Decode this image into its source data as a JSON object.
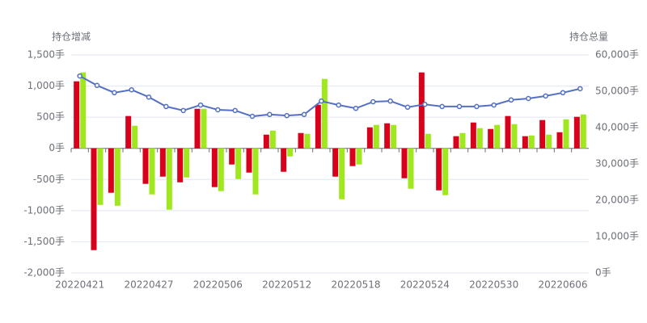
{
  "chart_data": {
    "type": "bar-line",
    "y_title": "持仓增减",
    "y2_title": "持仓总量",
    "categories": [
      "20220421",
      null,
      null,
      null,
      "20220427",
      null,
      null,
      null,
      "20220506",
      null,
      null,
      null,
      "20220512",
      null,
      null,
      null,
      "20220518",
      null,
      null,
      null,
      "20220524",
      null,
      null,
      null,
      "20220530",
      null,
      null,
      null,
      "20220606",
      null
    ],
    "series": [
      {
        "type": "bar",
        "color": "#d9001b",
        "values": [
          1076,
          -1634,
          -713,
          519,
          -570,
          -454,
          -545,
          635,
          -622,
          -259,
          -389,
          220,
          -376,
          246,
          700,
          -454,
          -285,
          337,
          402,
          -480,
          1219,
          -674,
          195,
          415,
          311,
          519,
          195,
          454,
          259,
          506
        ]
      },
      {
        "type": "bar",
        "color": "#a0e81e",
        "values": [
          1219,
          -908,
          -921,
          363,
          -739,
          -985,
          -467,
          635,
          -687,
          -493,
          -739,
          285,
          -130,
          233,
          1115,
          -817,
          -259,
          376,
          376,
          -648,
          233,
          -752,
          246,
          324,
          376,
          389,
          207,
          220,
          467,
          545
        ]
      },
      {
        "type": "line",
        "axis": "y2",
        "color": "#5470c6",
        "values": [
          54200,
          51600,
          49600,
          50400,
          48400,
          45800,
          44700,
          46200,
          44900,
          44700,
          43100,
          43600,
          43300,
          43600,
          47300,
          46200,
          45300,
          47100,
          47300,
          45600,
          46400,
          45800,
          45800,
          45800,
          46200,
          47600,
          48000,
          48700,
          49600,
          50700
        ]
      }
    ],
    "ylim": [
      -2000,
      1500
    ],
    "yticks": [
      {
        "value": -2000,
        "label": "-2,000手"
      },
      {
        "value": -1500,
        "label": "-1,500手"
      },
      {
        "value": -1000,
        "label": "-1,000手"
      },
      {
        "value": -500,
        "label": "-500手"
      },
      {
        "value": 0,
        "label": "0手"
      },
      {
        "value": 500,
        "label": "500手"
      },
      {
        "value": 1000,
        "label": "1,000手"
      },
      {
        "value": 1500,
        "label": "1,500手"
      }
    ],
    "y2lim": [
      0,
      60000
    ],
    "y2ticks": [
      {
        "value": 0,
        "label": "0手"
      },
      {
        "value": 10000,
        "label": "10,000手"
      },
      {
        "value": 20000,
        "label": "20,000手"
      },
      {
        "value": 30000,
        "label": "30,000手"
      },
      {
        "value": 40000,
        "label": "40,000手"
      },
      {
        "value": 50000,
        "label": "50,000手"
      },
      {
        "value": 60000,
        "label": "60,000手"
      }
    ],
    "grid": true
  }
}
